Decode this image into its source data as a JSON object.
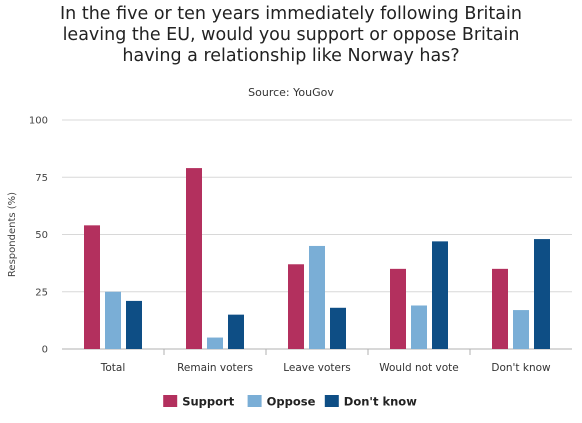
{
  "colors": {
    "support": "#b3305e",
    "oppose": "#7aaed6",
    "dont_know": "#0e4e85",
    "grid": "#d8d8d8",
    "axis": "#b0b0b0"
  },
  "chart_data": {
    "type": "bar",
    "title_lines": [
      "In the five or ten years immediately following Britain",
      "leaving the EU, would you support or oppose Britain",
      "having a relationship like Norway has?"
    ],
    "subtitle": "Source: YouGov",
    "xlabel": "",
    "ylabel": "Respondents (%)",
    "ylim": [
      0,
      100
    ],
    "yticks": [
      "0",
      "25",
      "50",
      "75",
      "100"
    ],
    "categories": [
      "Total",
      "Remain voters",
      "Leave voters",
      "Would not vote",
      "Don't know"
    ],
    "series": [
      {
        "name": "Support",
        "color": "#b3305e",
        "values": [
          54,
          79,
          37,
          35,
          35
        ]
      },
      {
        "name": "Oppose",
        "color": "#7aaed6",
        "values": [
          25,
          5,
          45,
          19,
          17
        ]
      },
      {
        "name": "Don't know",
        "color": "#0e4e85",
        "values": [
          21,
          15,
          18,
          47,
          48
        ]
      }
    ],
    "legend_position": "bottom",
    "grid": true
  }
}
